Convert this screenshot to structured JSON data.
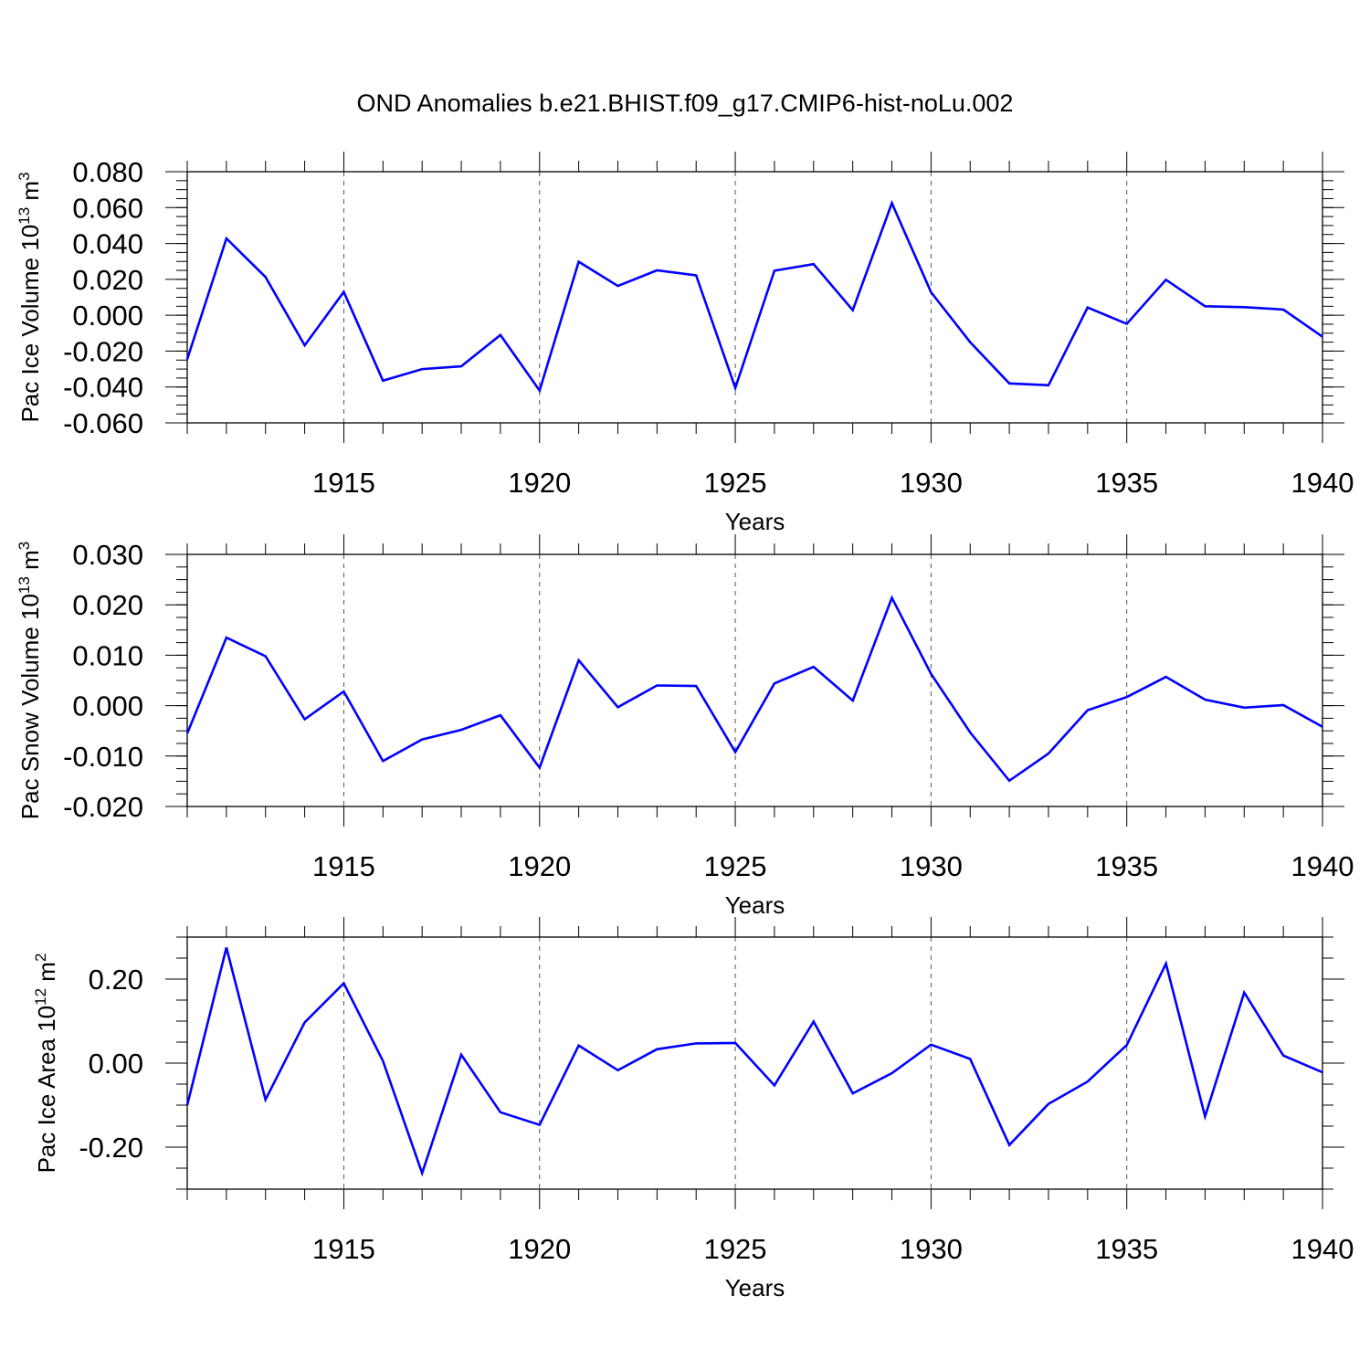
{
  "title": "OND Anomalies b.e21.BHIST.f09_g17.CMIP6-hist-noLu.002",
  "chart_data": [
    {
      "type": "line",
      "ylabel": "Pac Ice Volume 10",
      "ylabel_sup": "13",
      "ylabel_unit": "m",
      "ylabel_unit_sup": "3",
      "xlabel": "Years",
      "xlim": [
        1911,
        1940
      ],
      "ylim": [
        -0.06,
        0.08
      ],
      "xticks": [
        "1915",
        "1920",
        "1925",
        "1930",
        "1935",
        "1940"
      ],
      "yticks": [
        "0.080",
        "0.060",
        "0.040",
        "0.020",
        "0.000",
        "-0.020",
        "-0.040",
        "-0.060"
      ],
      "line_color": "#0000ff",
      "x": [
        1911,
        1912,
        1913,
        1914,
        1915,
        1916,
        1917,
        1918,
        1919,
        1920,
        1921,
        1922,
        1923,
        1924,
        1925,
        1926,
        1927,
        1928,
        1929,
        1930,
        1931,
        1932,
        1933,
        1934,
        1935,
        1936,
        1937,
        1938,
        1939,
        1940
      ],
      "values": [
        -0.0245,
        0.0428,
        0.0213,
        -0.0168,
        0.013,
        -0.0365,
        -0.03,
        -0.0285,
        -0.011,
        -0.042,
        0.0298,
        0.0163,
        0.025,
        0.0222,
        -0.0405,
        0.0248,
        0.0285,
        0.0028,
        0.0625,
        0.0128,
        -0.015,
        -0.038,
        -0.039,
        0.0043,
        -0.0048,
        0.0198,
        0.005,
        0.0045,
        0.0032,
        -0.012
      ]
    },
    {
      "type": "line",
      "ylabel": "Pac Snow Volume 10",
      "ylabel_sup": "13",
      "ylabel_unit": "m",
      "ylabel_unit_sup": "3",
      "xlabel": "Years",
      "xlim": [
        1911,
        1940
      ],
      "ylim": [
        -0.02,
        0.03
      ],
      "xticks": [
        "1915",
        "1920",
        "1925",
        "1930",
        "1935",
        "1940"
      ],
      "yticks": [
        "0.030",
        "0.020",
        "0.010",
        "0.000",
        "-0.010",
        "-0.020"
      ],
      "line_color": "#0000ff",
      "x": [
        1911,
        1912,
        1913,
        1914,
        1915,
        1916,
        1917,
        1918,
        1919,
        1920,
        1921,
        1922,
        1923,
        1924,
        1925,
        1926,
        1927,
        1928,
        1929,
        1930,
        1931,
        1932,
        1933,
        1934,
        1935,
        1936,
        1937,
        1938,
        1939,
        1940
      ],
      "values": [
        -0.0055,
        0.0135,
        0.0098,
        -0.0027,
        0.0028,
        -0.011,
        -0.0067,
        -0.0048,
        -0.0019,
        -0.0123,
        0.009,
        -0.0003,
        0.004,
        0.0039,
        -0.0092,
        0.0044,
        0.0077,
        0.001,
        0.0214,
        0.0063,
        -0.0053,
        -0.0149,
        -0.0095,
        -0.0009,
        0.0017,
        0.0057,
        0.0012,
        -0.0004,
        0.0001,
        -0.0042
      ]
    },
    {
      "type": "line",
      "ylabel": "Pac Ice Area 10",
      "ylabel_sup": "12",
      "ylabel_unit": "m",
      "ylabel_unit_sup": "2",
      "xlabel": "Years",
      "xlim": [
        1911,
        1940
      ],
      "ylim": [
        -0.3,
        0.3
      ],
      "xticks": [
        "1915",
        "1920",
        "1925",
        "1930",
        "1935",
        "1940"
      ],
      "yticks": [
        "0.20",
        "0.00",
        "-0.20"
      ],
      "line_color": "#0000ff",
      "x": [
        1911,
        1912,
        1913,
        1914,
        1915,
        1916,
        1917,
        1918,
        1919,
        1920,
        1921,
        1922,
        1923,
        1924,
        1925,
        1926,
        1927,
        1928,
        1929,
        1930,
        1931,
        1932,
        1933,
        1934,
        1935,
        1936,
        1937,
        1938,
        1939,
        1940
      ],
      "values": [
        -0.1,
        0.275,
        -0.087,
        0.097,
        0.19,
        0.005,
        -0.262,
        0.02,
        -0.117,
        -0.147,
        0.042,
        -0.017,
        0.033,
        0.047,
        0.048,
        -0.053,
        0.099,
        -0.072,
        -0.024,
        0.044,
        0.01,
        -0.195,
        -0.097,
        -0.044,
        0.043,
        0.237,
        -0.127,
        0.168,
        0.018,
        -0.022
      ]
    }
  ]
}
